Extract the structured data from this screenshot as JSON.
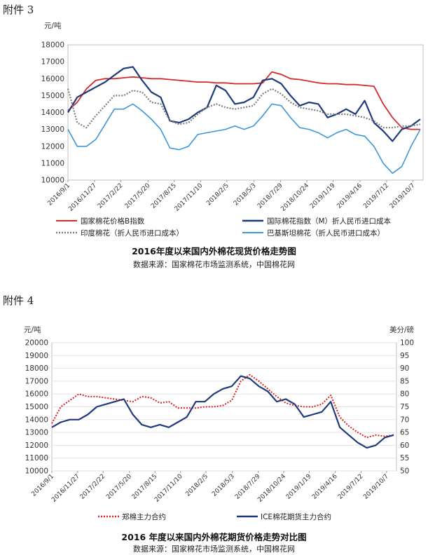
{
  "attachments": {
    "first": "附件 3",
    "second": "附件 4"
  },
  "colors": {
    "cn_index": "#d42a2a",
    "intl_index": "#1f3a7a",
    "india": "#7f7f7f",
    "pakistan": "#3c97d6",
    "zce": "#e02020",
    "ice": "#1f3a7a"
  },
  "chart_data": [
    {
      "type": "line",
      "title": "2016年度以来国内外棉花现货价格走势图",
      "source": "数据来源：国家棉花市场监测系统，中国棉花网",
      "yunit": "元/吨",
      "ylim": [
        10000,
        18000
      ],
      "yticks": [
        "18000",
        "17000",
        "16000",
        "15000",
        "14000",
        "13000",
        "12000",
        "11000",
        "10000"
      ],
      "xticks": [
        "2016/9/1",
        "2016/11/27",
        "2017/2/22",
        "2017/5/20",
        "2017/8/15",
        "2017/11/10",
        "2018/2/5",
        "2018/5/3",
        "2018/7/29",
        "2018/10/24",
        "2019/1/19",
        "2019/4/16",
        "2019/7/12",
        "2019/10/7"
      ],
      "x": [
        "2016-09",
        "2016-10",
        "2016-11",
        "2016-12",
        "2017-01",
        "2017-02",
        "2017-03",
        "2017-04",
        "2017-05",
        "2017-06",
        "2017-07",
        "2017-08",
        "2017-09",
        "2017-10",
        "2017-11",
        "2017-12",
        "2018-01",
        "2018-02",
        "2018-03",
        "2018-04",
        "2018-05",
        "2018-06",
        "2018-07",
        "2018-08",
        "2018-09",
        "2018-10",
        "2018-11",
        "2018-12",
        "2019-01",
        "2019-02",
        "2019-03",
        "2019-04",
        "2019-05",
        "2019-06",
        "2019-07",
        "2019-08",
        "2019-09",
        "2019-10",
        "2019-11"
      ],
      "series": [
        {
          "name": "国家棉花价格B指数",
          "style": "solid",
          "values": [
            14100,
            14600,
            15400,
            15900,
            16000,
            16000,
            16050,
            16100,
            16050,
            16000,
            16000,
            15950,
            15900,
            15850,
            15800,
            15800,
            15750,
            15750,
            15700,
            15700,
            15700,
            15750,
            16400,
            16250,
            16000,
            15950,
            15850,
            15750,
            15700,
            15700,
            15650,
            15650,
            15600,
            15550,
            14500,
            13700,
            13100,
            13000,
            13000
          ]
        },
        {
          "name": "国际棉花指数（M）折人民币进口成本",
          "style": "solid",
          "values": [
            14000,
            14900,
            15200,
            15500,
            15800,
            16200,
            16600,
            16700,
            15900,
            15200,
            14900,
            13500,
            13400,
            13600,
            14000,
            14300,
            15600,
            15300,
            14500,
            14600,
            14900,
            15900,
            16000,
            15700,
            15000,
            14400,
            14600,
            14500,
            13700,
            13900,
            14200,
            13900,
            14700,
            13400,
            12900,
            12300,
            13000,
            13200,
            13600
          ]
        },
        {
          "name": "印度棉花（折人民币进口成本）",
          "style": "dotted",
          "values": [
            15400,
            13400,
            13100,
            13800,
            14400,
            15000,
            15000,
            15300,
            15200,
            14600,
            14500,
            13500,
            13300,
            13400,
            13900,
            14300,
            14500,
            14300,
            14200,
            14300,
            14400,
            15100,
            15400,
            15100,
            14600,
            14300,
            14200,
            14100,
            13900,
            13900,
            13900,
            13800,
            13700,
            13500,
            13100,
            13100,
            13200,
            13200,
            13300
          ]
        },
        {
          "name": "巴基斯坦棉花（折人民币进口成本）",
          "style": "solid",
          "values": [
            13000,
            12000,
            12000,
            12400,
            13300,
            14200,
            14200,
            14500,
            14100,
            13600,
            13000,
            11900,
            11800,
            12000,
            12700,
            12800,
            12900,
            13000,
            13200,
            13000,
            13200,
            13800,
            14500,
            14400,
            13700,
            13100,
            13000,
            12800,
            12500,
            12800,
            13000,
            12700,
            12600,
            12000,
            11000,
            10400,
            10800,
            12000,
            13000
          ]
        }
      ]
    },
    {
      "type": "line",
      "title": "2016 年度以来国内外棉花期货价格走势对比图",
      "source": "数据来源：国家棉花市场监测系统，中国棉花网",
      "yunit_left": "元/吨",
      "yunit_right": "美分/磅",
      "ylim": [
        10000,
        20000
      ],
      "ylim_right": [
        50,
        100
      ],
      "yticks": [
        "20000",
        "19000",
        "18000",
        "17000",
        "16000",
        "15000",
        "14000",
        "13000",
        "12000",
        "11000",
        "10000"
      ],
      "yticks_right": [
        "100",
        "95",
        "90",
        "85",
        "80",
        "75",
        "70",
        "65",
        "60",
        "55",
        "50"
      ],
      "xticks": [
        "2016/9/1",
        "2016/11/27",
        "2017/2/22",
        "2017/5/20",
        "2017/8/15",
        "2017/11/10",
        "2018/2/5",
        "2018/5/3",
        "2018/7/29",
        "2018/10/24",
        "2019/1/19",
        "2019/4/16",
        "2019/7/12",
        "2019/10/7"
      ],
      "x": [
        "2016-09",
        "2016-10",
        "2016-11",
        "2016-12",
        "2017-01",
        "2017-02",
        "2017-03",
        "2017-04",
        "2017-05",
        "2017-06",
        "2017-07",
        "2017-08",
        "2017-09",
        "2017-10",
        "2017-11",
        "2017-12",
        "2018-01",
        "2018-02",
        "2018-03",
        "2018-04",
        "2018-05",
        "2018-06",
        "2018-07",
        "2018-08",
        "2018-09",
        "2018-10",
        "2018-11",
        "2018-12",
        "2019-01",
        "2019-02",
        "2019-03",
        "2019-04",
        "2019-05",
        "2019-06",
        "2019-07",
        "2019-08",
        "2019-09",
        "2019-10",
        "2019-11"
      ],
      "series": [
        {
          "name": "郑棉主力合约",
          "axis": "left",
          "style": "dotted",
          "values": [
            13700,
            15000,
            15500,
            16000,
            15800,
            15800,
            15700,
            15600,
            15500,
            15400,
            15800,
            15700,
            15300,
            15400,
            14900,
            14900,
            14900,
            15000,
            15000,
            15100,
            15500,
            17000,
            17500,
            17000,
            16400,
            15800,
            15300,
            15100,
            15000,
            15000,
            15200,
            15900,
            14200,
            13500,
            13000,
            12600,
            12800,
            12700,
            12800
          ]
        },
        {
          "name": "ICE棉花期货主力合约",
          "axis": "right",
          "style": "solid",
          "values": [
            67,
            69,
            70,
            70,
            72,
            75,
            76,
            77,
            78,
            72,
            68,
            67,
            68,
            67,
            69,
            71,
            77,
            77,
            80,
            82,
            83,
            87,
            86,
            83,
            81,
            77,
            78,
            76,
            71,
            72,
            73,
            77,
            67,
            64,
            61,
            59,
            60,
            63,
            64
          ]
        }
      ]
    }
  ]
}
